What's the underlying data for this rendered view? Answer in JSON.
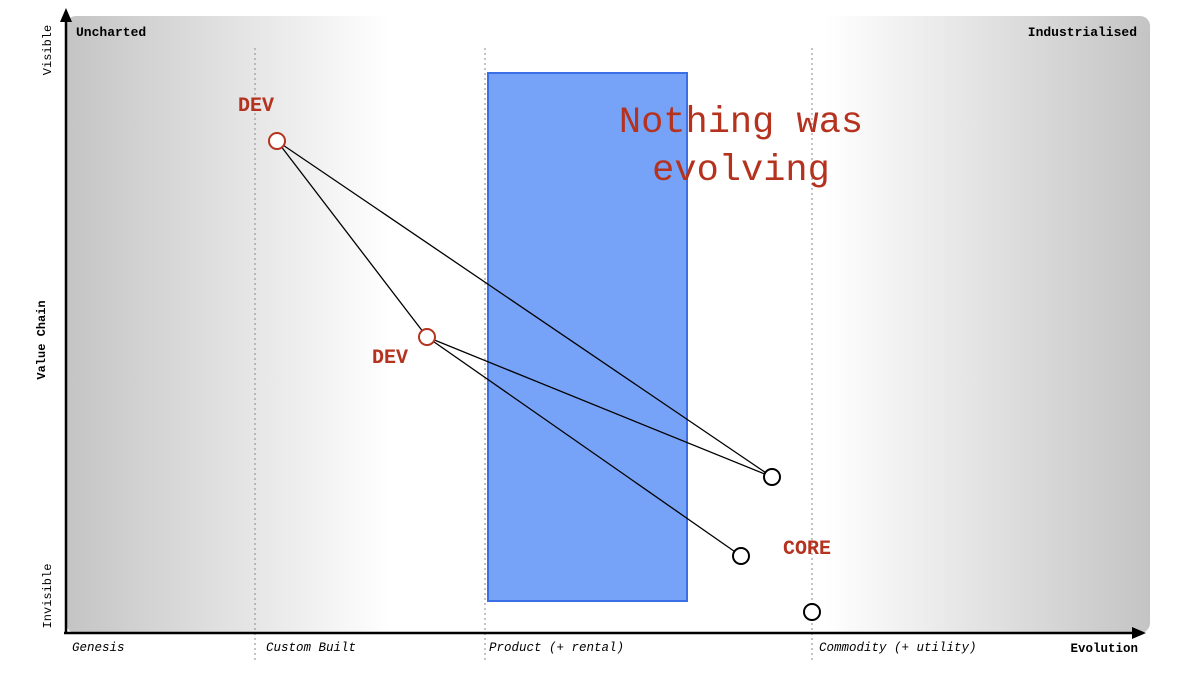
{
  "map": {
    "corner_left": "Uncharted",
    "corner_right": "Industrialised",
    "y_axis_title": "Value Chain",
    "y_top": "Visible",
    "y_bottom": "Invisible",
    "x_axis_title": "Evolution",
    "stages": [
      "Genesis",
      "Custom Built",
      "Product (+ rental)",
      "Commodity (+ utility)"
    ],
    "annotation_line1": "Nothing was",
    "annotation_line2": "evolving",
    "labels": {
      "dev_top": "DEV",
      "dev_mid": "DEV",
      "core": "CORE"
    },
    "colors": {
      "highlight": "#2f6ef0",
      "accent": "#b5321f",
      "ink": "#000000"
    }
  }
}
